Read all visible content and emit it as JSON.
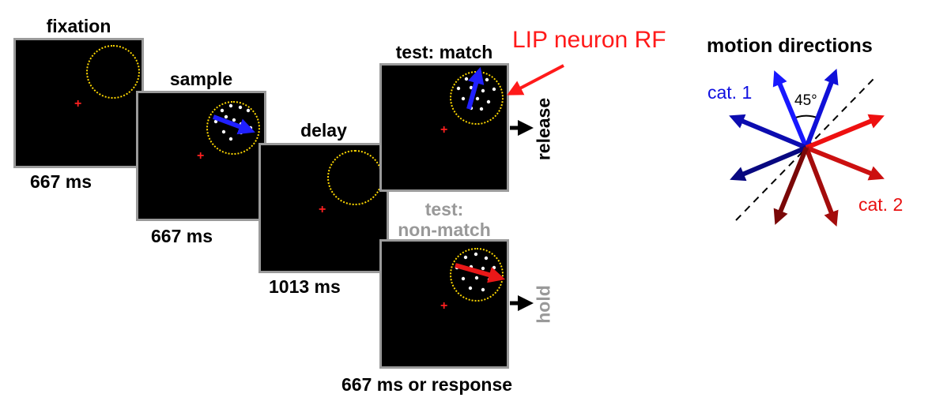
{
  "epochs": {
    "fixation": {
      "title": "fixation",
      "duration": "667 ms"
    },
    "sample": {
      "title": "sample",
      "duration": "667 ms"
    },
    "delay": {
      "title": "delay",
      "duration": "1013 ms"
    },
    "test_match": {
      "title": "test: match",
      "response": "release"
    },
    "test_nonmatch": {
      "title_line1": "test:",
      "title_line2": "non-match",
      "response": "hold",
      "duration": "667 ms or response"
    }
  },
  "rf_label": "LIP neuron RF",
  "motion": {
    "title": "motion directions",
    "cat1_label": "cat. 1",
    "cat2_label": "cat. 2",
    "angle_label": "45°"
  },
  "colors": {
    "cat1": "#1010e0",
    "cat2": "#e81010",
    "rf_circle": "#ffd800",
    "fixation_point": "#ff2020",
    "frame_border": "#9a9a9a",
    "muted_text": "#999999"
  }
}
